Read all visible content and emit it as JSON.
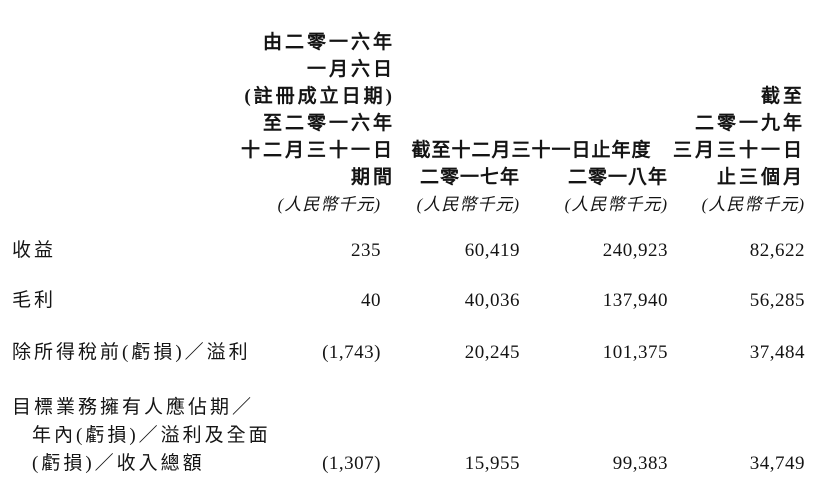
{
  "table": {
    "header": {
      "col_2016": {
        "lines": [
          "由二零一六年",
          "一月六日",
          "(註冊成立日期)",
          "至二零一六年",
          "十二月三十一日",
          "期間"
        ],
        "unit": "(人民幣千元)"
      },
      "group_years_ended": "截至十二月三十一日止年度",
      "col_2017": {
        "year": "二零一七年",
        "unit": "(人民幣千元)"
      },
      "col_2018": {
        "year": "二零一八年",
        "unit": "(人民幣千元)"
      },
      "col_q1_2019": {
        "lines": [
          "截至",
          "二零一九年",
          "三月三十一日",
          "止三個月"
        ],
        "unit": "(人民幣千元)"
      }
    },
    "rows": [
      {
        "label_lines": [
          "收益"
        ],
        "values": [
          "235",
          "60,419",
          "240,923",
          "82,622"
        ]
      },
      {
        "label_lines": [
          "毛利"
        ],
        "values": [
          "40",
          "40,036",
          "137,940",
          "56,285"
        ]
      },
      {
        "label_lines": [
          "除所得稅前(虧損)／溢利"
        ],
        "values": [
          "(1,743)",
          "20,245",
          "101,375",
          "37,484"
        ]
      },
      {
        "label_lines": [
          "目標業務擁有人應佔期／",
          "年內(虧損)／溢利及全面",
          "(虧損)／收入總額"
        ],
        "values": [
          "(1,307)",
          "15,955",
          "99,383",
          "34,749"
        ]
      }
    ]
  }
}
